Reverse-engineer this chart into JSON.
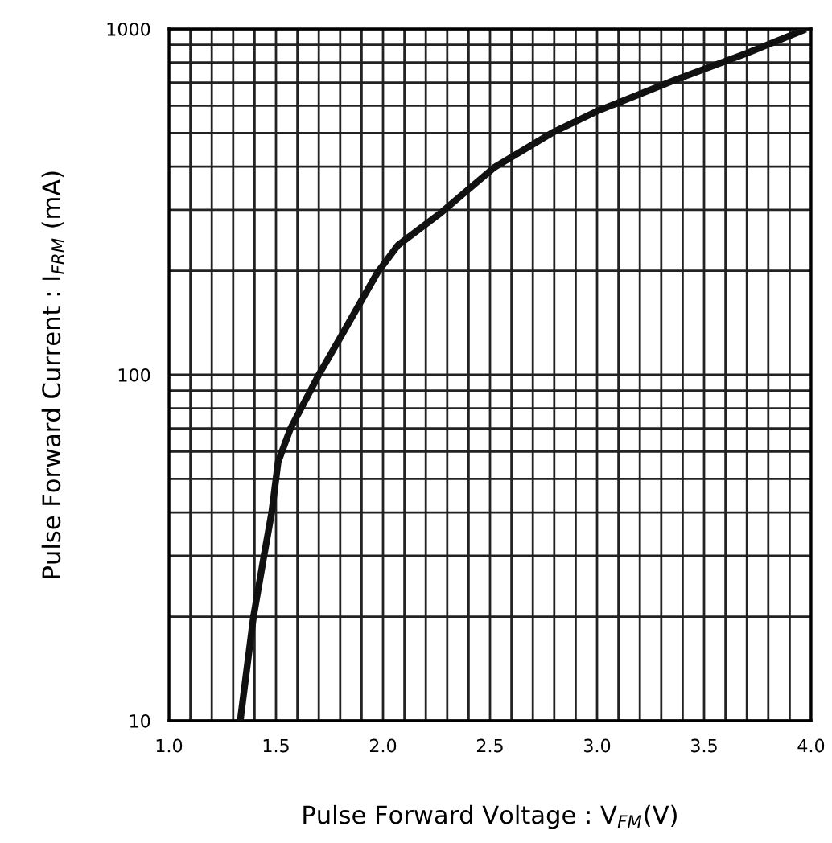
{
  "chart_data": {
    "type": "line",
    "xlabel": "Pulse Forward Voltage : V$_{FM}$(V)",
    "ylabel": "Pulse Forward Current : I$_{FRM}$ (mA)",
    "log": "y",
    "grid": true,
    "marker": "none",
    "line_style": "solid",
    "xlim": [
      1.0,
      4.0
    ],
    "ylim": [
      10,
      1000
    ],
    "xticks": [
      {
        "value": 1.0,
        "label": "1.0"
      },
      {
        "value": 1.1,
        "label": null
      },
      {
        "value": 1.2,
        "label": null
      },
      {
        "value": 1.3,
        "label": null
      },
      {
        "value": 1.4,
        "label": null
      },
      {
        "value": 1.5,
        "label": "1.5"
      },
      {
        "value": 1.6,
        "label": null
      },
      {
        "value": 1.7,
        "label": null
      },
      {
        "value": 1.8,
        "label": null
      },
      {
        "value": 1.9,
        "label": null
      },
      {
        "value": 2.0,
        "label": "2.0"
      },
      {
        "value": 2.1,
        "label": null
      },
      {
        "value": 2.2,
        "label": null
      },
      {
        "value": 2.3,
        "label": null
      },
      {
        "value": 2.4,
        "label": null
      },
      {
        "value": 2.5,
        "label": "2.5"
      },
      {
        "value": 2.6,
        "label": null
      },
      {
        "value": 2.7,
        "label": null
      },
      {
        "value": 2.8,
        "label": null
      },
      {
        "value": 2.9,
        "label": null
      },
      {
        "value": 3.0,
        "label": "3.0"
      },
      {
        "value": 3.1,
        "label": null
      },
      {
        "value": 3.2,
        "label": null
      },
      {
        "value": 3.3,
        "label": null
      },
      {
        "value": 3.4,
        "label": null
      },
      {
        "value": 3.5,
        "label": "3.5"
      },
      {
        "value": 3.6,
        "label": null
      },
      {
        "value": 3.7,
        "label": null
      },
      {
        "value": 3.8,
        "label": null
      },
      {
        "value": 3.9,
        "label": null
      },
      {
        "value": 4.0,
        "label": "4.0"
      }
    ],
    "yticks": [
      10,
      {
        "value": 20,
        "label": null
      },
      {
        "value": 30,
        "label": null
      },
      {
        "value": 40,
        "label": null
      },
      {
        "value": 50,
        "label": null
      },
      {
        "value": 60,
        "label": null
      },
      {
        "value": 70,
        "label": null
      },
      {
        "value": 80,
        "label": null
      },
      {
        "value": 90,
        "label": null
      },
      100,
      {
        "value": 200,
        "label": null
      },
      {
        "value": 300,
        "label": null
      },
      {
        "value": 400,
        "label": null
      },
      {
        "value": 500,
        "label": null
      },
      {
        "value": 600,
        "label": null
      },
      {
        "value": 700,
        "label": null
      },
      {
        "value": 800,
        "label": null
      },
      {
        "value": 900,
        "label": null
      },
      1000
    ],
    "series": [
      {
        "color": "#111111",
        "x": [
          1.333,
          1.395,
          1.444,
          1.48,
          1.51,
          1.568,
          1.7,
          1.8,
          1.975,
          2.07,
          2.27,
          2.52,
          2.79,
          3.01,
          3.36,
          3.7,
          3.96
        ],
        "values": [
          10,
          20,
          30,
          40,
          56,
          70,
          100,
          128,
          198,
          237,
          294,
          398,
          501,
          582,
          710,
          851,
          989
        ]
      }
    ]
  }
}
